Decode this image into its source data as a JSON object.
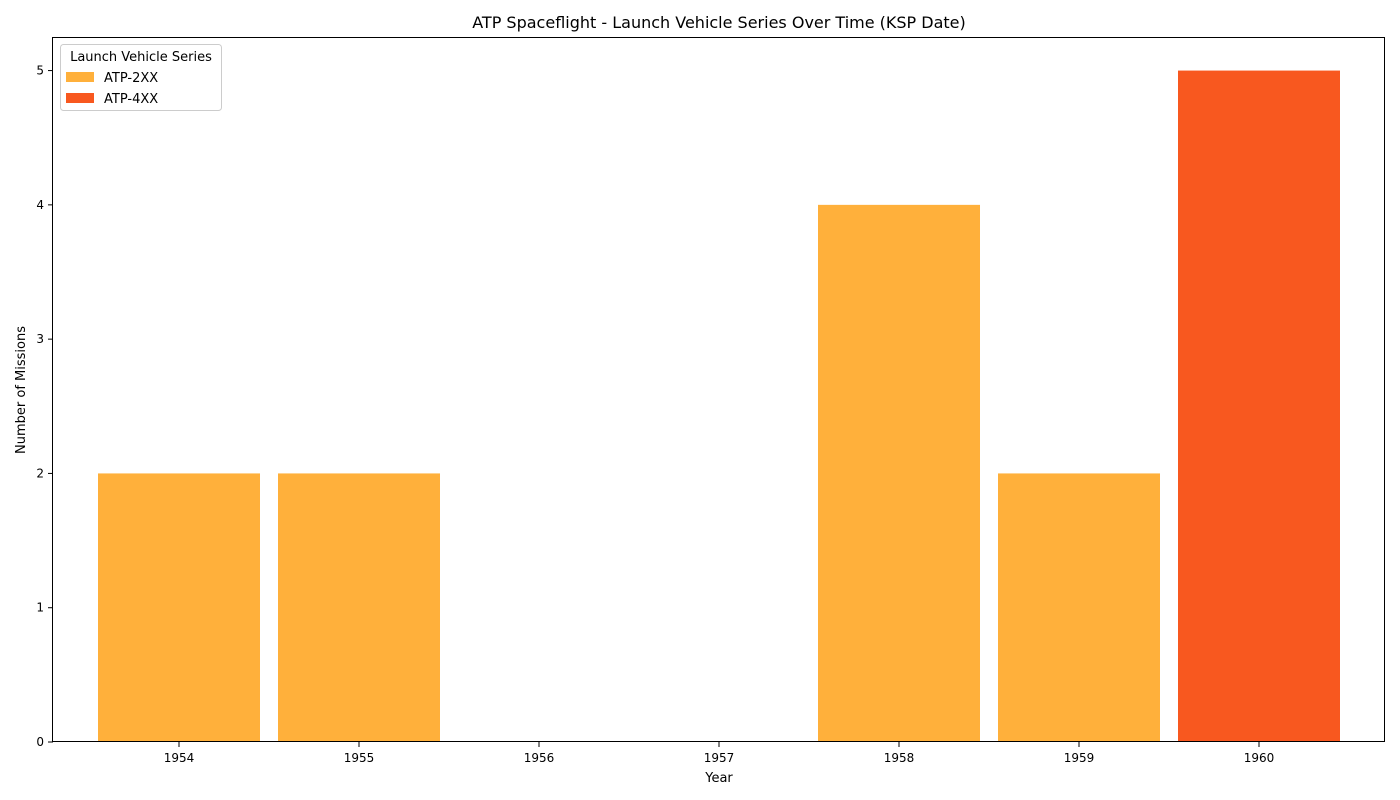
{
  "chart_data": {
    "type": "bar",
    "stacked": true,
    "title": "ATP Spaceflight - Launch Vehicle Series Over Time (KSP Date)",
    "xlabel": "Year",
    "ylabel": "Number of Missions",
    "categories": [
      "1954",
      "1955",
      "1956",
      "1957",
      "1958",
      "1959",
      "1960"
    ],
    "yticks": [
      "0",
      "1",
      "2",
      "3",
      "4",
      "5"
    ],
    "ylim": [
      0,
      5.25
    ],
    "grid": false,
    "legend": {
      "title": "Launch Vehicle Series",
      "placement": "top-left"
    },
    "series": [
      {
        "name": "ATP-2XX",
        "color": "#FFB03B",
        "values": [
          2,
          2,
          0,
          0,
          4,
          2,
          0
        ]
      },
      {
        "name": "ATP-4XX",
        "color": "#F8581F",
        "values": [
          0,
          0,
          0,
          0,
          0,
          0,
          5
        ]
      }
    ]
  }
}
